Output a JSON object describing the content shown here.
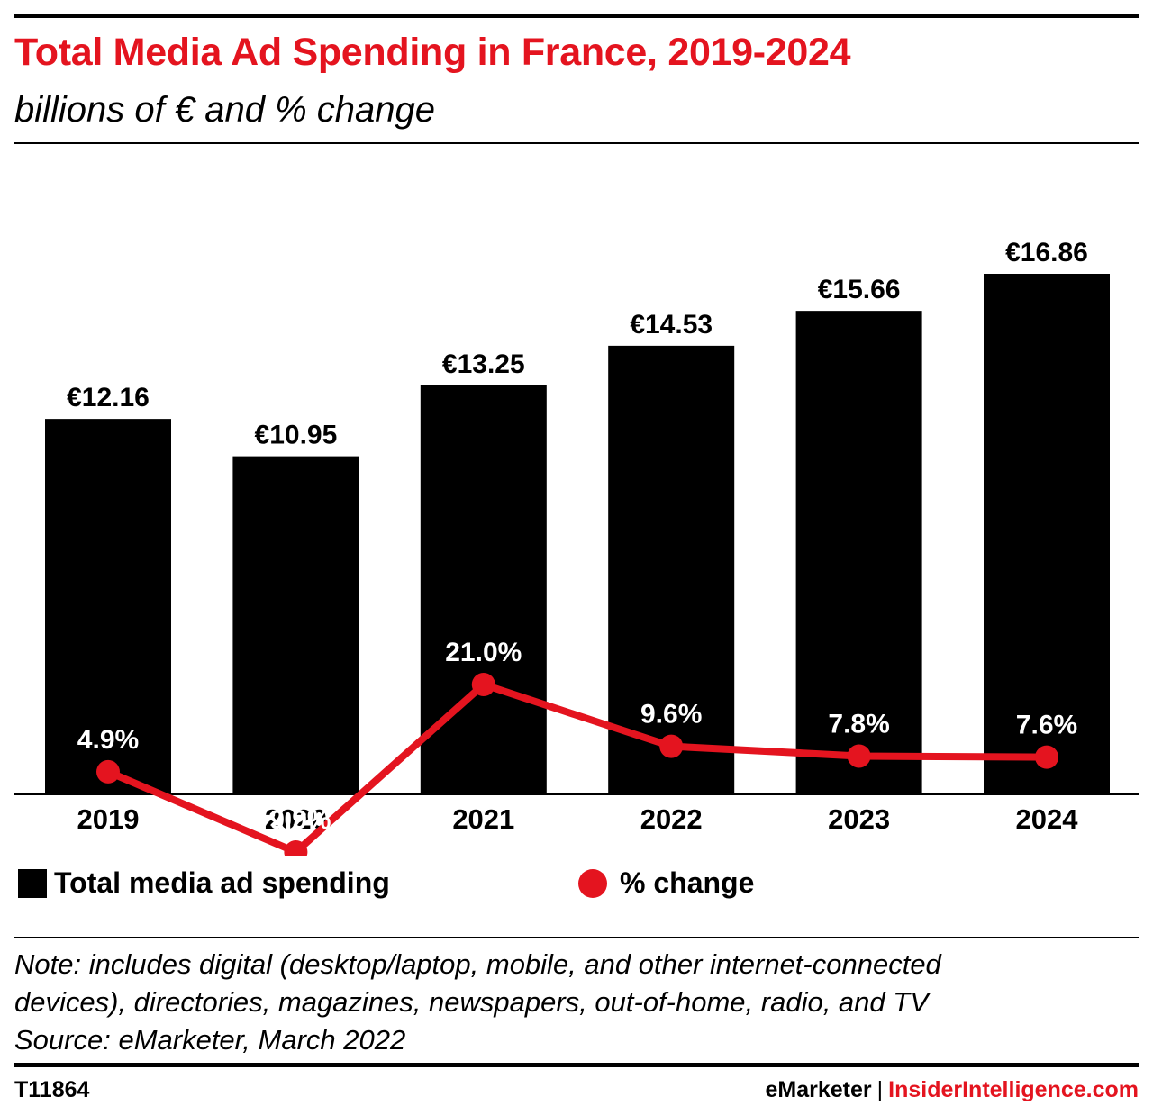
{
  "header": {
    "title": "Total Media Ad Spending in France, 2019-2024",
    "subtitle": "billions of € and % change"
  },
  "chart_data": {
    "type": "bar",
    "categories": [
      "2019",
      "2020",
      "2021",
      "2022",
      "2023",
      "2024"
    ],
    "series": [
      {
        "name": "Total media ad spending",
        "type": "bar",
        "values": [
          12.16,
          10.95,
          13.25,
          14.53,
          15.66,
          16.86
        ],
        "labels": [
          "€12.16",
          "€10.95",
          "€13.25",
          "€14.53",
          "€15.66",
          "€16.86"
        ],
        "color": "#000000"
      },
      {
        "name": "% change",
        "type": "line",
        "values": [
          4.9,
          -9.9,
          21.0,
          9.6,
          7.8,
          7.6
        ],
        "labels": [
          "4.9%",
          "-9.9%",
          "21.0%",
          "9.6%",
          "7.8%",
          "7.6%"
        ],
        "color": "#e4141f"
      }
    ],
    "ylim": [
      0,
      16.86
    ],
    "y2lim": [
      -9.9,
      21.0
    ],
    "grid": false,
    "legend": "bottom"
  },
  "legend": {
    "bar_label": "Total media ad spending",
    "line_label": "% change"
  },
  "note": {
    "line1": "Note: includes digital (desktop/laptop, mobile, and other internet-connected",
    "line2": "devices), directories, magazines, newspapers, out-of-home, radio, and TV",
    "line3": "Source: eMarketer, March 2022"
  },
  "footer": {
    "id": "T11864",
    "brand": "eMarketer",
    "separator": "|",
    "site": "InsiderIntelligence.com"
  }
}
